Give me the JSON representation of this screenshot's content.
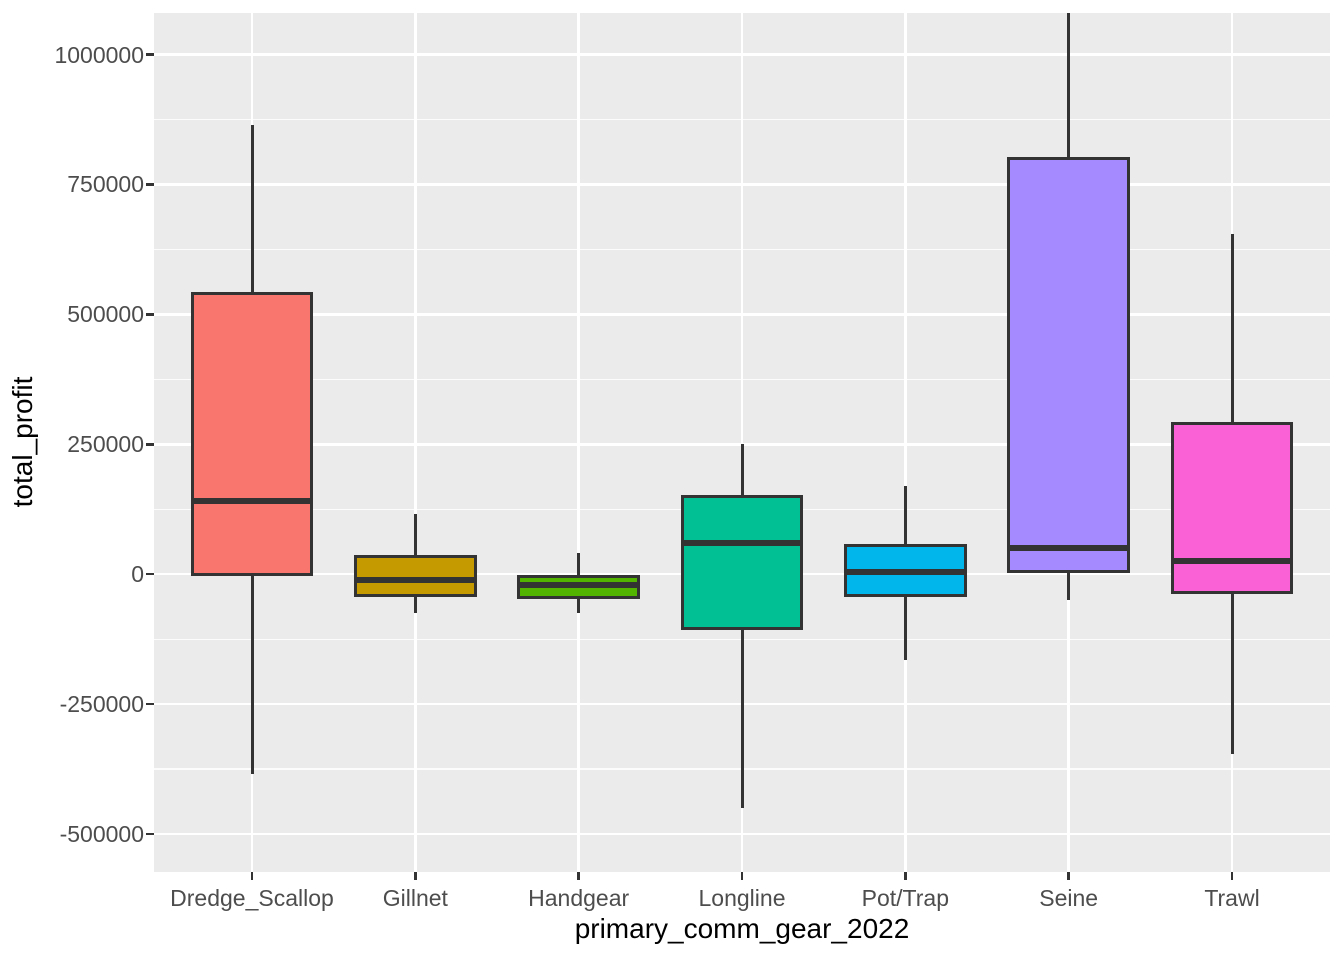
{
  "chart_data": {
    "type": "boxplot",
    "title": "",
    "xlabel": "primary_comm_gear_2022",
    "ylabel": "total_profit",
    "grid": "major+minor",
    "legend_position": "none",
    "panel_background": "#EBEBEB",
    "gridline_color": "#FFFFFF",
    "box_outline_color": "#333333",
    "tick_label_color": "#4D4D4D",
    "axis_title_color": "#000000",
    "categories": [
      "Dredge_Scallop",
      "Gillnet",
      "Handgear",
      "Longline",
      "Pot/Trap",
      "Seine",
      "Trawl"
    ],
    "series": [
      {
        "name": "Dredge_Scallop",
        "color": "#F8766D",
        "min": -385000,
        "q1": 0,
        "median": 140000,
        "q3": 540000,
        "max": 865000
      },
      {
        "name": "Gillnet",
        "color": "#C49A00",
        "min": -75000,
        "q1": -40000,
        "median": -12000,
        "q3": 35000,
        "max": 115000
      },
      {
        "name": "Handgear",
        "color": "#53B400",
        "min": -75000,
        "q1": -45000,
        "median": -20000,
        "q3": -5000,
        "max": 40000
      },
      {
        "name": "Longline",
        "color": "#00C094",
        "min": -450000,
        "q1": -105000,
        "median": 60000,
        "q3": 150000,
        "max": 250000
      },
      {
        "name": "Pot/Trap",
        "color": "#00B6EB",
        "min": -165000,
        "q1": -40000,
        "median": 5000,
        "q3": 55000,
        "max": 170000
      },
      {
        "name": "Seine",
        "color": "#A58AFF",
        "min": -50000,
        "q1": 5000,
        "median": 50000,
        "q3": 800000,
        "max": 1080000
      },
      {
        "name": "Trawl",
        "color": "#FB61D7",
        "min": -345000,
        "q1": -35000,
        "median": 25000,
        "q3": 290000,
        "max": 655000
      }
    ],
    "y_ticks": [
      {
        "value": 1000000,
        "label": "1000000"
      },
      {
        "value": 750000,
        "label": "750000"
      },
      {
        "value": 500000,
        "label": "500000"
      },
      {
        "value": 250000,
        "label": "250000"
      },
      {
        "value": 0,
        "label": "0"
      },
      {
        "value": -250000,
        "label": "-250000"
      },
      {
        "value": -500000,
        "label": "-500000"
      }
    ],
    "y_minor_ticks": [
      875000,
      625000,
      375000,
      125000,
      -125000,
      -375000
    ],
    "ylim": [
      -573000,
      1080000
    ]
  }
}
